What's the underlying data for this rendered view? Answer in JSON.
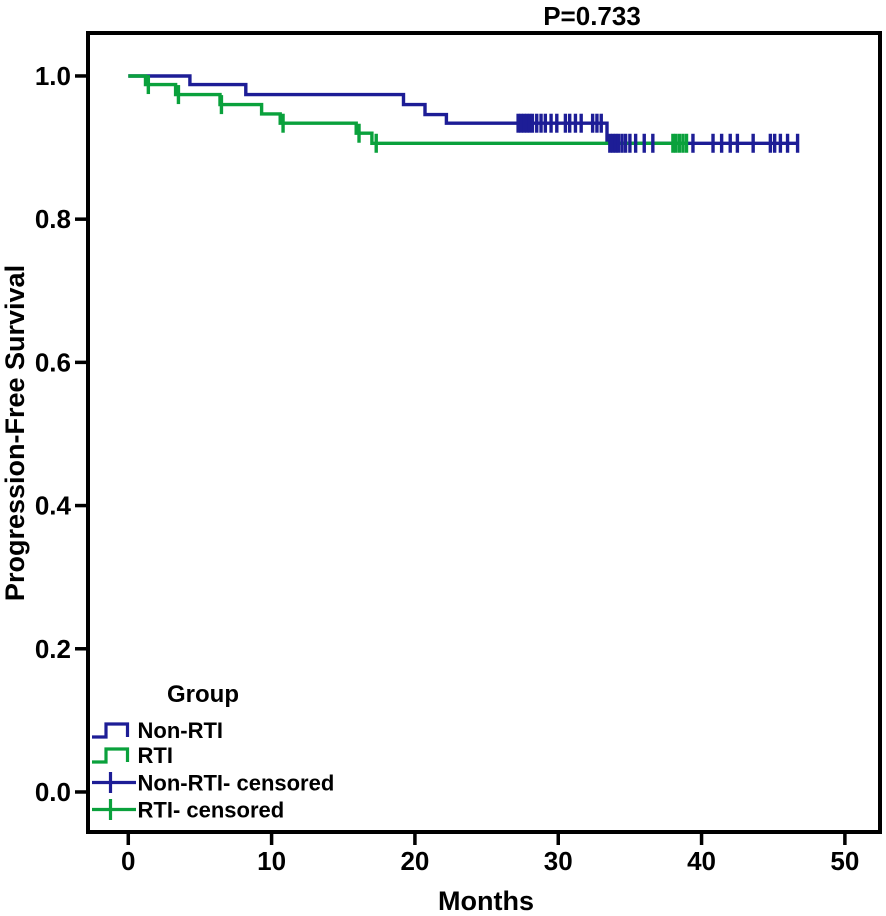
{
  "title": {
    "text": "P=0.733"
  },
  "colors": {
    "non_rti": "#1d1d96",
    "rti": "#0aa13c",
    "axis": "#000000",
    "background": "#ffffff"
  },
  "legend": {
    "title": "Group",
    "entries": [
      {
        "id": "non-rti",
        "label": "Non-RTI",
        "symbol": "step",
        "color": "#1d1d96"
      },
      {
        "id": "rti",
        "label": "RTI",
        "symbol": "step",
        "color": "#0aa13c"
      },
      {
        "id": "non-rti-censored",
        "label": "Non-RTI- censored",
        "symbol": "censored",
        "color": "#1d1d96"
      },
      {
        "id": "rti-censored",
        "label": "RTI- censored",
        "symbol": "censored",
        "color": "#0aa13c"
      }
    ]
  },
  "chart_data": {
    "type": "line",
    "subtype": "kaplan_meier_step",
    "title": "P=0.733",
    "xlabel": "Months",
    "ylabel": "Progression-Free Survival",
    "xlim": [
      -2.81,
      52.45
    ],
    "ylim": [
      -0.0559,
      1.06
    ],
    "xticks": [
      0,
      10,
      20,
      30,
      40,
      50
    ],
    "xtick_labels": [
      "0",
      "10",
      "20",
      "30",
      "40",
      "50"
    ],
    "yticks": [
      0.0,
      0.2,
      0.4,
      0.6,
      0.8,
      1.0
    ],
    "ytick_labels": [
      "0.0",
      "0.2",
      "0.4",
      "0.6",
      "0.8",
      "1.0"
    ],
    "grid": false,
    "legend_position": "inside-bottom-left",
    "series": [
      {
        "id": "non-rti",
        "name": "Non-RTI",
        "color": "#1d1d96",
        "steps": [
          [
            0,
            1.0
          ],
          [
            4.3,
            0.988
          ],
          [
            8.2,
            0.974
          ],
          [
            19.2,
            0.96
          ],
          [
            20.7,
            0.946
          ],
          [
            22.2,
            0.934
          ],
          [
            33.4,
            0.906
          ]
        ],
        "end_month": 46.7,
        "censored": [
          [
            27.2,
            0.934
          ],
          [
            27.4,
            0.934
          ],
          [
            27.6,
            0.934
          ],
          [
            27.8,
            0.934
          ],
          [
            28.0,
            0.934
          ],
          [
            28.2,
            0.934
          ],
          [
            28.5,
            0.934
          ],
          [
            28.8,
            0.934
          ],
          [
            29.1,
            0.934
          ],
          [
            29.5,
            0.934
          ],
          [
            29.9,
            0.934
          ],
          [
            30.5,
            0.934
          ],
          [
            30.8,
            0.934
          ],
          [
            31.2,
            0.934
          ],
          [
            31.6,
            0.934
          ],
          [
            32.4,
            0.934
          ],
          [
            32.7,
            0.934
          ],
          [
            33.0,
            0.934
          ],
          [
            33.6,
            0.906
          ],
          [
            33.8,
            0.906
          ],
          [
            34.0,
            0.906
          ],
          [
            34.2,
            0.906
          ],
          [
            34.45,
            0.906
          ],
          [
            34.7,
            0.906
          ],
          [
            35.0,
            0.906
          ],
          [
            35.4,
            0.906
          ],
          [
            36.0,
            0.906
          ],
          [
            36.6,
            0.906
          ],
          [
            39.4,
            0.906
          ],
          [
            40.8,
            0.906
          ],
          [
            41.4,
            0.906
          ],
          [
            42.0,
            0.906
          ],
          [
            42.5,
            0.906
          ],
          [
            43.6,
            0.906
          ],
          [
            44.8,
            0.906
          ],
          [
            45.1,
            0.906
          ],
          [
            45.5,
            0.906
          ],
          [
            46.0,
            0.906
          ],
          [
            46.7,
            0.906
          ]
        ]
      },
      {
        "id": "rti",
        "name": "RTI",
        "color": "#0aa13c",
        "steps": [
          [
            0,
            1.0
          ],
          [
            1.2,
            0.988
          ],
          [
            3.3,
            0.974
          ],
          [
            6.4,
            0.96
          ],
          [
            9.3,
            0.947
          ],
          [
            10.6,
            0.934
          ],
          [
            15.9,
            0.92
          ],
          [
            17.0,
            0.906
          ]
        ],
        "end_month": 39.0,
        "censored": [
          [
            1.4,
            0.988
          ],
          [
            3.5,
            0.974
          ],
          [
            6.5,
            0.96
          ],
          [
            10.8,
            0.934
          ],
          [
            16.1,
            0.92
          ],
          [
            17.3,
            0.906
          ],
          [
            38.0,
            0.906
          ],
          [
            38.2,
            0.906
          ],
          [
            38.45,
            0.906
          ],
          [
            38.7,
            0.906
          ],
          [
            38.95,
            0.906
          ]
        ]
      }
    ]
  }
}
